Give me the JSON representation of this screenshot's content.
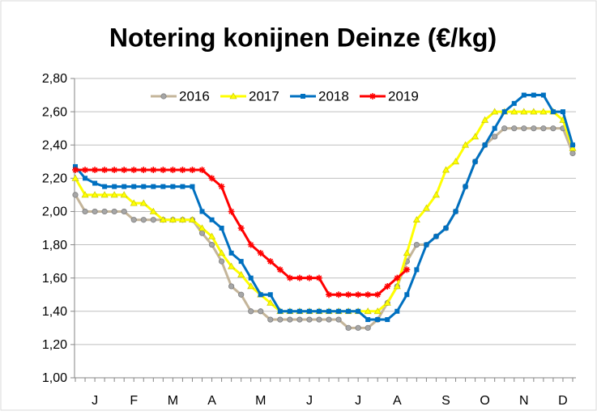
{
  "chart_data": {
    "type": "line",
    "title": "Notering konijnen Deinze (€/kg)",
    "categories": [
      null,
      null,
      "J",
      null,
      null,
      null,
      "F",
      null,
      null,
      null,
      "M",
      null,
      null,
      null,
      "A",
      null,
      null,
      null,
      null,
      "M",
      null,
      null,
      null,
      null,
      "J",
      null,
      null,
      null,
      null,
      "J",
      null,
      null,
      null,
      "A",
      null,
      null,
      null,
      null,
      "S",
      null,
      null,
      null,
      "O",
      null,
      null,
      null,
      "N",
      null,
      null,
      null,
      "D",
      null
    ],
    "ylim": [
      1.0,
      2.8
    ],
    "yticks": [
      {
        "value": 1.0,
        "label": "1,00"
      },
      {
        "value": 1.2,
        "label": "1,20"
      },
      {
        "value": 1.4,
        "label": "1,40"
      },
      {
        "value": 1.6,
        "label": "1,60"
      },
      {
        "value": 1.8,
        "label": "1,80"
      },
      {
        "value": 2.0,
        "label": "2,00"
      },
      {
        "value": 2.2,
        "label": "2,20"
      },
      {
        "value": 2.4,
        "label": "2,40"
      },
      {
        "value": 2.6,
        "label": "2,60"
      },
      {
        "value": 2.8,
        "label": "2,80"
      }
    ],
    "grid": true,
    "legend": "top",
    "series": [
      {
        "name": "2016",
        "color": "#c4b59a",
        "marker_color": "#a6a6a6",
        "marker": "circle",
        "values": [
          2.1,
          2.0,
          2.0,
          2.0,
          2.0,
          2.0,
          1.95,
          1.95,
          1.95,
          1.95,
          1.95,
          1.95,
          1.95,
          1.87,
          1.8,
          1.7,
          1.55,
          1.5,
          1.4,
          1.4,
          1.35,
          1.35,
          1.35,
          1.35,
          1.35,
          1.35,
          1.35,
          1.35,
          1.3,
          1.3,
          1.3,
          1.35,
          1.45,
          1.55,
          1.7,
          1.8,
          1.8,
          1.85,
          1.9,
          2.0,
          2.15,
          2.3,
          2.4,
          2.45,
          2.5,
          2.5,
          2.5,
          2.5,
          2.5,
          2.5,
          2.5,
          2.35
        ]
      },
      {
        "name": "2017",
        "color": "#ffff00",
        "marker_color": "#ffff00",
        "marker": "triangle",
        "values": [
          2.2,
          2.1,
          2.1,
          2.1,
          2.1,
          2.1,
          2.05,
          2.05,
          2.0,
          1.95,
          1.95,
          1.95,
          1.95,
          1.9,
          1.85,
          1.75,
          1.67,
          1.62,
          1.55,
          1.5,
          1.45,
          1.4,
          1.4,
          1.4,
          1.4,
          1.4,
          1.4,
          1.4,
          1.4,
          1.4,
          1.4,
          1.4,
          1.45,
          1.55,
          1.75,
          1.95,
          2.02,
          2.1,
          2.25,
          2.3,
          2.4,
          2.45,
          2.55,
          2.6,
          2.6,
          2.6,
          2.6,
          2.6,
          2.6,
          2.6,
          2.55,
          2.38
        ]
      },
      {
        "name": "2018",
        "color": "#0070c0",
        "marker_color": "#0070c0",
        "marker": "square",
        "values": [
          2.27,
          2.2,
          2.17,
          2.15,
          2.15,
          2.15,
          2.15,
          2.15,
          2.15,
          2.15,
          2.15,
          2.15,
          2.15,
          2.0,
          1.95,
          1.9,
          1.75,
          1.7,
          1.6,
          1.5,
          1.5,
          1.4,
          1.4,
          1.4,
          1.4,
          1.4,
          1.4,
          1.4,
          1.4,
          1.4,
          1.35,
          1.35,
          1.35,
          1.4,
          1.5,
          1.65,
          1.8,
          1.85,
          1.9,
          2.0,
          2.15,
          2.3,
          2.4,
          2.5,
          2.6,
          2.65,
          2.7,
          2.7,
          2.7,
          2.6,
          2.6,
          2.4
        ]
      },
      {
        "name": "2019",
        "color": "#ff0000",
        "marker_color": "#ff0000",
        "marker": "asterisk",
        "values": [
          2.25,
          2.25,
          2.25,
          2.25,
          2.25,
          2.25,
          2.25,
          2.25,
          2.25,
          2.25,
          2.25,
          2.25,
          2.25,
          2.25,
          2.2,
          2.15,
          2.0,
          1.9,
          1.8,
          1.75,
          1.7,
          1.65,
          1.6,
          1.6,
          1.6,
          1.6,
          1.5,
          1.5,
          1.5,
          1.5,
          1.5,
          1.5,
          1.55,
          1.6,
          1.65,
          null,
          null,
          null,
          null,
          null,
          null,
          null,
          null,
          null,
          null,
          null,
          null,
          null,
          null,
          null,
          null,
          null
        ]
      }
    ]
  }
}
